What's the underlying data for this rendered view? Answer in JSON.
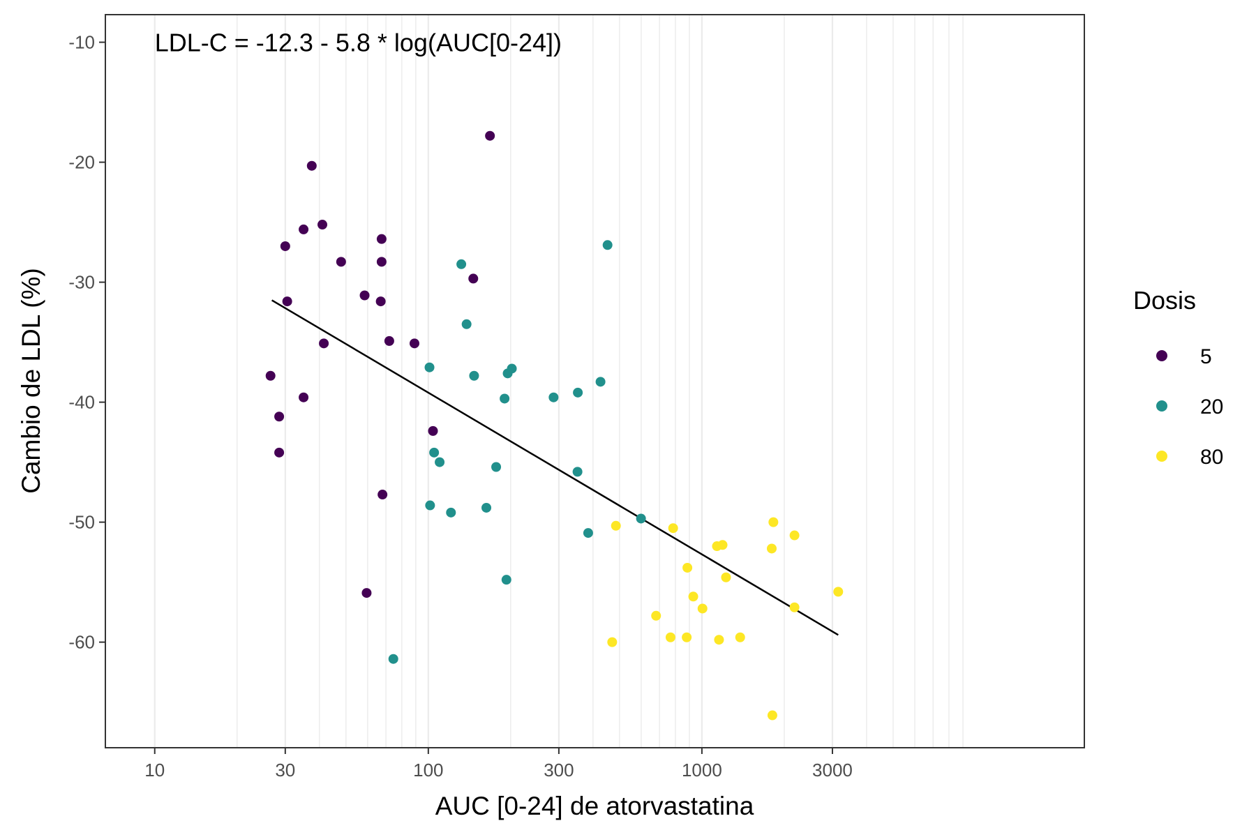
{
  "chart_data": {
    "type": "scatter",
    "title": "",
    "xlabel": "AUC [0-24] de atorvastatina",
    "ylabel": "Cambio de LDL (%)",
    "x_scale": "log10",
    "xlim": [
      6.6,
      25000
    ],
    "ylim": [
      -68.8,
      -7.7
    ],
    "x_ticks": [
      10,
      30,
      100,
      300,
      1000,
      3000
    ],
    "x_tick_labels": [
      "10",
      "30",
      "100",
      "300",
      "1000",
      "3000"
    ],
    "y_ticks": [
      -10,
      -20,
      -30,
      -40,
      -50,
      -60
    ],
    "y_tick_labels": [
      "-10",
      "-20",
      "-30",
      "-40",
      "-50",
      "-60"
    ],
    "minor_x_gridlines": [
      20,
      40,
      50,
      60,
      70,
      80,
      90,
      200,
      400,
      500,
      600,
      700,
      800,
      900,
      2000,
      4000,
      5000,
      6000,
      7000,
      8000,
      9000
    ],
    "grid": true,
    "annotation": {
      "text": "LDL-C = -12.3 - 5.8 * log(AUC[0-24])",
      "x": 10,
      "y": -10
    },
    "fit_line": {
      "x": [
        26.8,
        3150
      ],
      "y": [
        -31.5,
        -59.4
      ],
      "color": "#000000"
    },
    "legend": {
      "title": "Dosis",
      "placement": "right"
    },
    "series": [
      {
        "name": "5",
        "color": "#440154",
        "points": [
          [
            26.5,
            -37.8
          ],
          [
            28.5,
            -41.2
          ],
          [
            28.5,
            -44.2
          ],
          [
            30.0,
            -27.0
          ],
          [
            30.5,
            -31.6
          ],
          [
            35.0,
            -25.6
          ],
          [
            35.0,
            -39.6
          ],
          [
            37.5,
            -20.3
          ],
          [
            41.0,
            -25.2
          ],
          [
            41.5,
            -35.1
          ],
          [
            48.0,
            -28.3
          ],
          [
            58.5,
            -31.1
          ],
          [
            59.5,
            -55.9
          ],
          [
            67.5,
            -26.4
          ],
          [
            67.5,
            -28.3
          ],
          [
            67.0,
            -31.6
          ],
          [
            68.0,
            -47.7
          ],
          [
            72.0,
            -34.9
          ],
          [
            89.0,
            -35.1
          ],
          [
            104.0,
            -42.4
          ],
          [
            146.0,
            -29.7
          ],
          [
            168.0,
            -17.8
          ]
        ]
      },
      {
        "name": "20",
        "color": "#21908C",
        "points": [
          [
            74.5,
            -61.4
          ],
          [
            101.0,
            -37.1
          ],
          [
            101.5,
            -48.6
          ],
          [
            105.0,
            -44.2
          ],
          [
            110.0,
            -45.0
          ],
          [
            121.0,
            -49.2
          ],
          [
            132.0,
            -28.5
          ],
          [
            138.0,
            -33.5
          ],
          [
            147.0,
            -37.8
          ],
          [
            163.0,
            -48.8
          ],
          [
            177.0,
            -45.4
          ],
          [
            190.0,
            -39.7
          ],
          [
            193.0,
            -54.8
          ],
          [
            195.0,
            -37.6
          ],
          [
            202.0,
            -37.2
          ],
          [
            287.0,
            -39.6
          ],
          [
            352.0,
            -39.2
          ],
          [
            351.0,
            -45.8
          ],
          [
            384.0,
            -50.9
          ],
          [
            426.0,
            -38.3
          ],
          [
            452.0,
            -26.9
          ],
          [
            599.0,
            -49.7
          ]
        ]
      },
      {
        "name": "80",
        "color": "#FDE725",
        "points": [
          [
            470.0,
            -60.0
          ],
          [
            485.0,
            -50.3
          ],
          [
            680.0,
            -57.8
          ],
          [
            768.0,
            -59.6
          ],
          [
            785.0,
            -50.5
          ],
          [
            880.0,
            -59.6
          ],
          [
            885.0,
            -53.8
          ],
          [
            930.0,
            -56.2
          ],
          [
            1005.0,
            -57.2
          ],
          [
            1135.0,
            -52.0
          ],
          [
            1155.0,
            -59.8
          ],
          [
            1190.0,
            -51.9
          ],
          [
            1225.0,
            -54.6
          ],
          [
            1380.0,
            -59.6
          ],
          [
            1800.0,
            -52.2
          ],
          [
            1825.0,
            -50.0
          ],
          [
            1810.0,
            -66.1
          ],
          [
            2180.0,
            -51.1
          ],
          [
            2180.0,
            -57.1
          ],
          [
            3150.0,
            -55.8
          ]
        ]
      }
    ]
  }
}
